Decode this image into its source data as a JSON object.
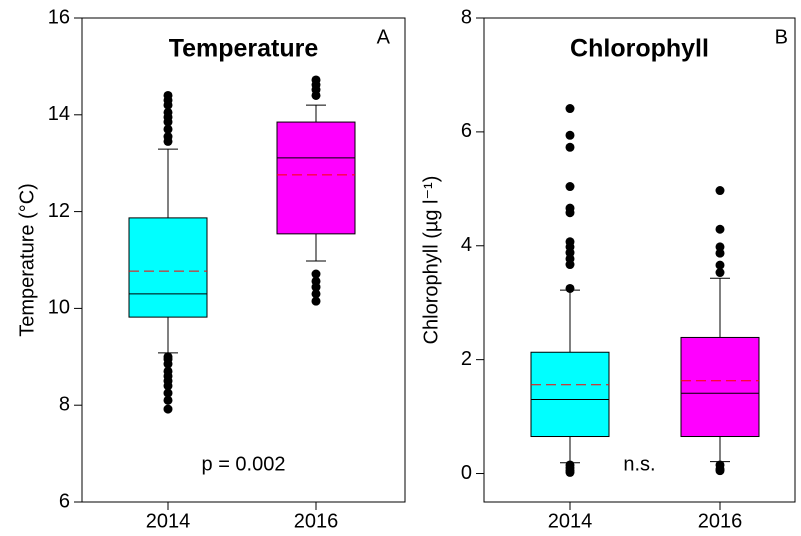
{
  "chart_data": [
    {
      "type": "box",
      "title": "Temperature",
      "panel_label": "A",
      "ylabel": "Temperature (°C)",
      "annotation": "p = 0.002",
      "categories": [
        "2014",
        "2016"
      ],
      "colors": [
        "#00ffff",
        "#ff00ff"
      ],
      "mean_color": "#ff0000",
      "ylim": [
        6,
        16
      ],
      "yticks": [
        6,
        8,
        10,
        12,
        14,
        16
      ],
      "boxes": [
        {
          "whisker_low": 9.08,
          "q1": 9.82,
          "median": 10.3,
          "q3": 11.87,
          "whisker_high": 13.29,
          "mean": 10.77,
          "outliers": [
            14.4,
            14.3,
            14.2,
            14.05,
            13.95,
            13.85,
            13.7,
            13.55,
            13.45,
            9.0,
            8.95,
            8.85,
            8.7,
            8.6,
            8.5,
            8.4,
            8.25,
            8.1,
            7.92
          ]
        },
        {
          "whisker_low": 10.98,
          "q1": 11.54,
          "median": 13.11,
          "q3": 13.85,
          "whisker_high": 14.2,
          "mean": 12.76,
          "outliers": [
            14.72,
            14.62,
            14.52,
            14.4,
            10.71,
            10.56,
            10.44,
            10.3,
            10.15
          ]
        }
      ]
    },
    {
      "type": "box",
      "title": "Chlorophyll",
      "panel_label": "B",
      "ylabel": "Chlorophyll (µg l⁻¹)",
      "annotation": "n.s.",
      "categories": [
        "2014",
        "2016"
      ],
      "colors": [
        "#00ffff",
        "#ff00ff"
      ],
      "mean_color": "#ff0000",
      "ylim": [
        -0.5,
        8
      ],
      "yticks": [
        0,
        2,
        4,
        6,
        8
      ],
      "boxes": [
        {
          "whisker_low": 0.19,
          "q1": 0.65,
          "median": 1.3,
          "q3": 2.13,
          "whisker_high": 3.22,
          "mean": 1.56,
          "outliers": [
            6.41,
            5.94,
            5.73,
            5.04,
            4.66,
            4.58,
            4.07,
            3.98,
            3.88,
            3.77,
            3.67,
            3.25,
            0.15,
            0.1,
            0.05,
            0.02
          ]
        },
        {
          "whisker_low": 0.21,
          "q1": 0.65,
          "median": 1.41,
          "q3": 2.39,
          "whisker_high": 3.43,
          "mean": 1.63,
          "outliers": [
            4.97,
            4.29,
            3.98,
            3.87,
            3.66,
            3.53,
            0.15,
            0.08,
            0.05
          ]
        }
      ]
    }
  ]
}
